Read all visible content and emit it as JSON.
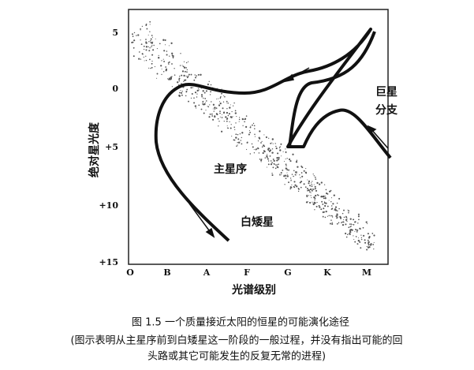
{
  "figure": {
    "y_axis_label": "绝对星光度",
    "x_axis_label": "光谱级别",
    "y_labels": [
      "5",
      "0",
      "+5",
      "+10",
      "+15"
    ],
    "x_labels": [
      "O",
      "B",
      "A",
      "F",
      "G",
      "K",
      "M"
    ],
    "annotations": {
      "giant_branch_1": "巨星",
      "giant_branch_2": "分支",
      "main_sequence": "主星序",
      "white_dwarf": "白矮星"
    }
  },
  "caption": {
    "title": "图 1.5   一个质量接近太阳的恒星的可能演化途径",
    "line1": "(图示表明从主星序前到白矮星这一阶段的一般过程，并没有指出可能的回",
    "line2": "头路或其它可能发生的反复无常的进程)"
  }
}
